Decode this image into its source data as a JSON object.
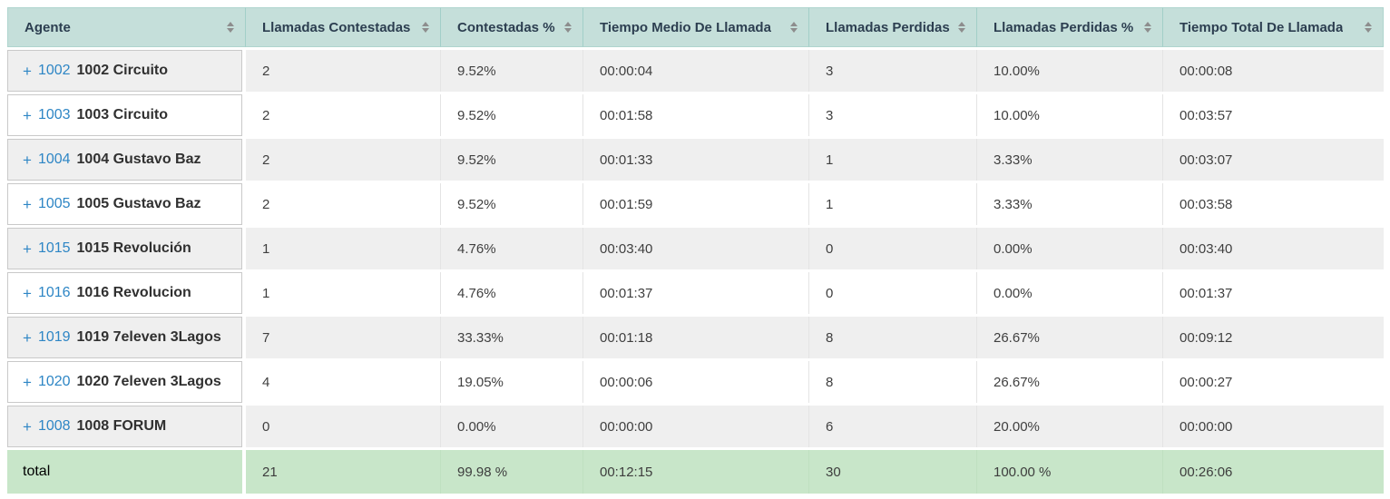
{
  "colors": {
    "header_bg": "#c5dfda",
    "header_border": "#a2cfc8",
    "header_text": "#2c3e50",
    "row_alt_bg": "#efefef",
    "row_bg": "#ffffff",
    "total_bg": "#c8e6c9",
    "link_blue": "#2e86c5",
    "cell_text": "#3f3f3f",
    "sorter_gray": "#8d8d8d"
  },
  "icons": {
    "expand": "+",
    "sort": "sort-asc-desc-triangles"
  },
  "table": {
    "columns": [
      {
        "key": "agent",
        "label": "Agente",
        "sortable": true
      },
      {
        "key": "answered",
        "label": "Llamadas Contestadas",
        "sortable": true
      },
      {
        "key": "answered_pct",
        "label": "Contestadas %",
        "sortable": true
      },
      {
        "key": "avg_time",
        "label": "Tiempo Medio De Llamada",
        "sortable": true
      },
      {
        "key": "missed",
        "label": "Llamadas Perdidas",
        "sortable": true
      },
      {
        "key": "missed_pct",
        "label": "Llamadas Perdidas %",
        "sortable": true
      },
      {
        "key": "total_time",
        "label": "Tiempo Total De Llamada",
        "sortable": true
      }
    ],
    "value_keys": [
      "answered",
      "answered_pct",
      "avg_time",
      "missed",
      "missed_pct",
      "total_time"
    ],
    "rows": [
      {
        "ext": "1002",
        "name": "1002 Circuito",
        "answered": "2",
        "answered_pct": "9.52%",
        "avg_time": "00:00:04",
        "missed": "3",
        "missed_pct": "10.00%",
        "total_time": "00:00:08"
      },
      {
        "ext": "1003",
        "name": "1003 Circuito",
        "answered": "2",
        "answered_pct": "9.52%",
        "avg_time": "00:01:58",
        "missed": "3",
        "missed_pct": "10.00%",
        "total_time": "00:03:57"
      },
      {
        "ext": "1004",
        "name": "1004 Gustavo Baz",
        "answered": "2",
        "answered_pct": "9.52%",
        "avg_time": "00:01:33",
        "missed": "1",
        "missed_pct": "3.33%",
        "total_time": "00:03:07"
      },
      {
        "ext": "1005",
        "name": "1005 Gustavo Baz",
        "answered": "2",
        "answered_pct": "9.52%",
        "avg_time": "00:01:59",
        "missed": "1",
        "missed_pct": "3.33%",
        "total_time": "00:03:58"
      },
      {
        "ext": "1015",
        "name": "1015 Revolución",
        "answered": "1",
        "answered_pct": "4.76%",
        "avg_time": "00:03:40",
        "missed": "0",
        "missed_pct": "0.00%",
        "total_time": "00:03:40"
      },
      {
        "ext": "1016",
        "name": "1016 Revolucion",
        "answered": "1",
        "answered_pct": "4.76%",
        "avg_time": "00:01:37",
        "missed": "0",
        "missed_pct": "0.00%",
        "total_time": "00:01:37"
      },
      {
        "ext": "1019",
        "name": "1019 7eleven 3Lagos",
        "answered": "7",
        "answered_pct": "33.33%",
        "avg_time": "00:01:18",
        "missed": "8",
        "missed_pct": "26.67%",
        "total_time": "00:09:12"
      },
      {
        "ext": "1020",
        "name": "1020 7eleven 3Lagos",
        "answered": "4",
        "answered_pct": "19.05%",
        "avg_time": "00:00:06",
        "missed": "8",
        "missed_pct": "26.67%",
        "total_time": "00:00:27"
      },
      {
        "ext": "1008",
        "name": "1008 FORUM",
        "answered": "0",
        "answered_pct": "0.00%",
        "avg_time": "00:00:00",
        "missed": "6",
        "missed_pct": "20.00%",
        "total_time": "00:00:00"
      }
    ],
    "total_row": {
      "label": "total",
      "answered": "21",
      "answered_pct": "99.98 %",
      "avg_time": "00:12:15",
      "missed": "30",
      "missed_pct": "100.00 %",
      "total_time": "00:26:06"
    }
  }
}
